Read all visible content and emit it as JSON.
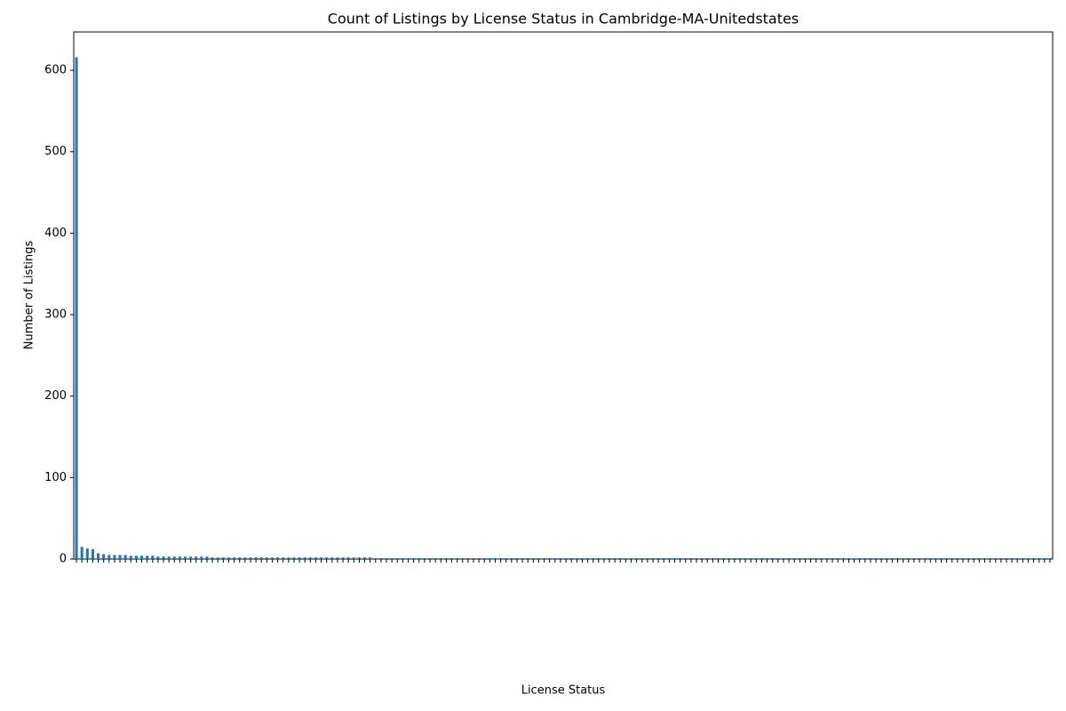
{
  "chart_data": {
    "type": "bar",
    "title": "Count of Listings by License Status in Cambridge-MA-Unitedstates",
    "x_label": "License Status",
    "y_label": "Number of Listings",
    "color": "#1f77b4",
    "ylim": [
      0,
      647
    ],
    "yticks": [
      0,
      100,
      200,
      300,
      400,
      500,
      600
    ],
    "categories": [
      null,
      null,
      null,
      null,
      null,
      null,
      null,
      null,
      null,
      null,
      null,
      null,
      null,
      null,
      null,
      null,
      null,
      null,
      null,
      null,
      null,
      null,
      null,
      null,
      null,
      null,
      null,
      null,
      null,
      null,
      null,
      null,
      null,
      null,
      null,
      null,
      null,
      null,
      null,
      null,
      null,
      null,
      null,
      null,
      null,
      null,
      null,
      null,
      null,
      null,
      null,
      null,
      null,
      null,
      null,
      null,
      null,
      null,
      null,
      null,
      null,
      null,
      null,
      null,
      null,
      null,
      null,
      null,
      null,
      null,
      null,
      null,
      null,
      null,
      null,
      null,
      null,
      null,
      null,
      null,
      null,
      null,
      null,
      null,
      null,
      null,
      null,
      null,
      null,
      null,
      null,
      null,
      null,
      null,
      null,
      null,
      null,
      null,
      null,
      null,
      null,
      null,
      null,
      null,
      null,
      null,
      null,
      null,
      null,
      null,
      null,
      null,
      null,
      null,
      null,
      null,
      null,
      null,
      null,
      null,
      null,
      null,
      null,
      null,
      null,
      null,
      null,
      null,
      null,
      null,
      null,
      null,
      null,
      null,
      null,
      null,
      null,
      null,
      null,
      null,
      null,
      null,
      null,
      null,
      null,
      null,
      null,
      null,
      null,
      null,
      null,
      null,
      null,
      null,
      null,
      null,
      null,
      null,
      null,
      null,
      null,
      null,
      null,
      null,
      null,
      null,
      null,
      null,
      null,
      null,
      null,
      null,
      null,
      null,
      null,
      null,
      null,
      null,
      null,
      null
    ],
    "values": [
      616,
      15,
      13,
      12,
      7,
      6,
      5,
      5,
      5,
      5,
      4,
      4,
      4,
      4,
      4,
      3,
      3,
      3,
      3,
      3,
      3,
      3,
      3,
      3,
      3,
      2,
      2,
      2,
      2,
      2,
      2,
      2,
      2,
      2,
      2,
      2,
      2,
      2,
      2,
      2,
      2,
      2,
      2,
      2,
      2,
      2,
      2,
      2,
      2,
      2,
      2,
      2,
      2,
      2,
      2,
      1,
      1,
      1,
      1,
      1,
      1,
      1,
      1,
      1,
      1,
      1,
      1,
      1,
      1,
      1,
      1,
      1,
      1,
      1,
      1,
      1,
      1,
      1,
      1,
      1,
      1,
      1,
      1,
      1,
      1,
      1,
      1,
      1,
      1,
      1,
      1,
      1,
      1,
      1,
      1,
      1,
      1,
      1,
      1,
      1,
      1,
      1,
      1,
      1,
      1,
      1,
      1,
      1,
      1,
      1,
      1,
      1,
      1,
      1,
      1,
      1,
      1,
      1,
      1,
      1,
      1,
      1,
      1,
      1,
      1,
      1,
      1,
      1,
      1,
      1,
      1,
      1,
      1,
      1,
      1,
      1,
      1,
      1,
      1,
      1,
      1,
      1,
      1,
      1,
      1,
      1,
      1,
      1,
      1,
      1,
      1,
      1,
      1,
      1,
      1,
      1,
      1,
      1,
      1,
      1,
      1,
      1,
      1,
      1,
      1,
      1,
      1,
      1,
      1,
      1,
      1,
      1,
      1,
      1,
      1,
      1,
      1,
      1,
      1,
      1
    ]
  }
}
